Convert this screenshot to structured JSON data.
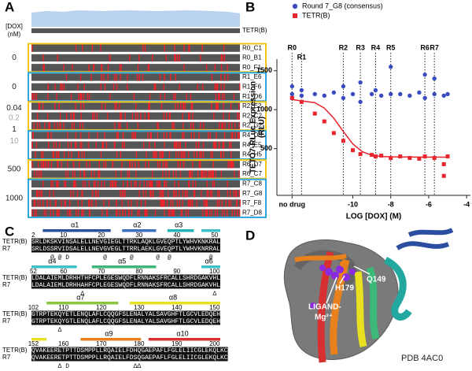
{
  "panel_labels": [
    "A",
    "B",
    "C",
    "D"
  ],
  "panel_a": {
    "reference": "TETR(B)",
    "dox_header": [
      "[DOX]",
      "(nM)"
    ],
    "dox_labels": [
      {
        "text": "0",
        "color": "#222222"
      },
      {
        "text": "0",
        "color": "#222222"
      },
      {
        "text": "0.04",
        "color": "#222222"
      },
      {
        "text": "0.2",
        "color": "#a0a0a0"
      },
      {
        "text": "1",
        "color": "#222222"
      },
      {
        "text": "10",
        "color": "#a0a0a0"
      },
      {
        "text": "500",
        "color": "#222222"
      },
      {
        "text": "1000",
        "color": "#222222"
      }
    ],
    "rows": [
      "R0_C1",
      "R0_B1",
      "R0_F1",
      "R1_E6",
      "R1_F6",
      "R1_D6",
      "R2_E2",
      "R2_C2",
      "R2_G2",
      "R4_D5",
      "R4_E5",
      "R4_H5",
      "R6_D7",
      "R6_C7",
      "R7_C8",
      "R7_G8",
      "R7_F8",
      "R7_D8"
    ],
    "frame_colors": [
      "#f0c419",
      "#2aa6df"
    ]
  },
  "chart_data": {
    "type": "scatter",
    "xlabel": "LOG [DOX] (M)",
    "ylabel": [
      "TETO7-RLuc Expression",
      "(RLU)"
    ],
    "xlim": [
      -14,
      -3.8
    ],
    "ylim": [
      -100,
      1650
    ],
    "xticks": [
      {
        "value": -13.2,
        "label": "no drug"
      },
      -10,
      -8,
      -6,
      -4
    ],
    "yticks": [
      500,
      1000,
      1500
    ],
    "x_markers": [
      {
        "label": "R0",
        "value": -13.2
      },
      {
        "label": "R1",
        "value": -12.7
      },
      {
        "label": "R2",
        "value": -10.5
      },
      {
        "label": "R3",
        "value": -9.6
      },
      {
        "label": "R4",
        "value": -8.8
      },
      {
        "label": "R5",
        "value": -8
      },
      {
        "label": "R6",
        "value": -6.2
      },
      {
        "label": "R7",
        "value": -5.7
      }
    ],
    "series": [
      {
        "name": "Round 7_G8 (consensus)",
        "color": "#3b4cc0",
        "marker": "circle",
        "x": [
          -13.2,
          -13.2,
          -13.2,
          -12.7,
          -12.7,
          -12,
          -11.5,
          -11,
          -10.5,
          -10.5,
          -10,
          -9.6,
          -9.6,
          -9,
          -8.8,
          -8.5,
          -8,
          -8,
          -7.5,
          -7,
          -6.5,
          -6.2,
          -6.2,
          -5.7,
          -5.7,
          -5.2,
          -5
        ],
        "values": [
          1200,
          1300,
          1150,
          1250,
          1180,
          1200,
          1180,
          1220,
          1300,
          1150,
          1200,
          1350,
          1100,
          1200,
          1250,
          1180,
          1550,
          1200,
          1200,
          1180,
          1220,
          1450,
          1150,
          1400,
          1200,
          1180,
          1200
        ]
      },
      {
        "name": "TETR(B)",
        "color": "#e8242c",
        "marker": "square",
        "x": [
          -13.2,
          -12.7,
          -12,
          -11.5,
          -11,
          -10.5,
          -10,
          -9.6,
          -9,
          -8.8,
          -8.5,
          -8,
          -7.5,
          -7,
          -6.5,
          -6.2,
          -5.7,
          -5.2,
          -5.2,
          -5
        ],
        "values": [
          1150,
          1100,
          950,
          850,
          700,
          600,
          480,
          430,
          420,
          400,
          410,
          380,
          400,
          380,
          370,
          400,
          380,
          300,
          150,
          400
        ]
      }
    ],
    "fit_line": {
      "color": "#e8242c",
      "x": [
        -13.2,
        -12,
        -11.5,
        -11,
        -10.5,
        -10,
        -9.5,
        -9,
        -8.5,
        -8,
        -7,
        -6,
        -5
      ],
      "values": [
        1130,
        1090,
        1020,
        890,
        720,
        560,
        460,
        415,
        400,
        395,
        392,
        391,
        390
      ]
    }
  },
  "panel_c": {
    "names": [
      "TETR(B)",
      "R7"
    ],
    "rows": [
      {
        "numbers": [
          2,
          10,
          20,
          30,
          40,
          50
        ],
        "helices": [
          {
            "label": "α1",
            "color": "#2b4ea0"
          },
          {
            "label": "α2",
            "color": "#3a6fc0"
          },
          {
            "label": "α3",
            "color": "#23b3b8"
          }
        ],
        "sequences": [
          "SRLDKSKVINSALELLNEVGIEGLTTRKLAQKLGVEQPTLYWHVKNKRAL",
          "SRLDSSRVIDSALELLNEVGVEGLTTRRLAEKLGVEQPTLYWHVKNRRAL"
        ],
        "marks": "     @ @ D         @      @      @  @          @"
      },
      {
        "numbers": [
          52,
          60,
          70,
          80,
          90,
          100
        ],
        "helices": [
          {
            "label": "α4",
            "color": "#3cc0cc"
          },
          {
            "label": "α5",
            "color": "#3cb878"
          },
          {
            "label": "α6",
            "color": "#3cc0cc"
          }
        ],
        "sequences": [
          "LDALAIEMLDRHHTHFCPLEGESWQDFLRNNAKSFRCALLSHRDGAKVHL",
          "LDALAIEMLDRHHAHFCPLEGESWQDFLRNNAKSFRCALLSHRDGAKVHL"
        ],
        "marks": "             Δ                                  Δ"
      },
      {
        "numbers": [
          102,
          110,
          120,
          130,
          140,
          150
        ],
        "helices": [
          {
            "label": "α7",
            "color": "#8cc63f"
          },
          {
            "label": "α8",
            "color": "#e8e020"
          }
        ],
        "sequences": [
          "GTRPTEKQYETLENQLAFLCQQGFSLENALYALSAVGHFTLGCVLEDQEH",
          "GTRPTEKQYGTLENQLAFLCQQGFSLENALYALSAVGHFTLGCVLEDQEH"
        ],
        "marks": "       Δ"
      },
      {
        "numbers": [
          152,
          160,
          170,
          180,
          190,
          200
        ],
        "helices": [
          {
            "label": "α9",
            "color": "#e8801c"
          },
          {
            "label": "α10",
            "color": "#d83030"
          }
        ],
        "sequences": [
          "QVAKEERETPTTDSMPPLLRQAIELFDHQGAEPAFLFGLELIICGLEKQLKC",
          "QVAKEERETPTTDSMPPLLRQAIELFDSQGAEPAFLFGLELIICGLEKQLKC"
        ],
        "marks": "       Δ D                 ΔΔ"
      }
    ]
  },
  "panel_d": {
    "ligand": [
      "LIGAND-",
      "Mg²⁺"
    ],
    "residues": [
      "H179",
      "Q149"
    ],
    "pdb": "PDB 4AC0"
  }
}
